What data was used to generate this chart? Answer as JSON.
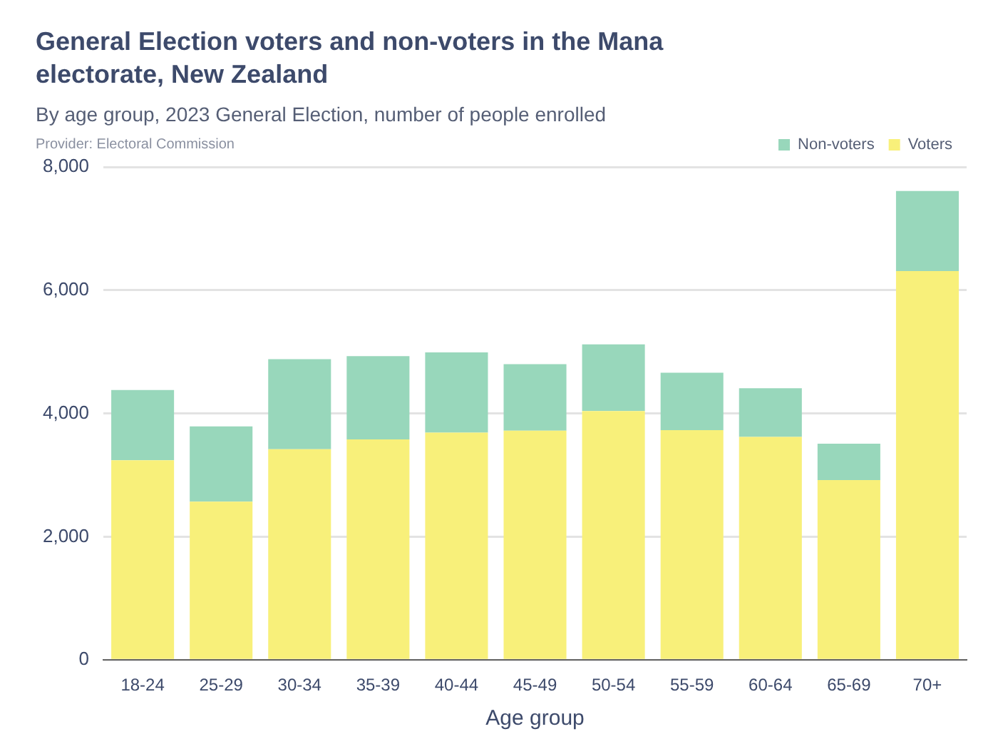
{
  "chart_data": {
    "type": "bar",
    "title": "General Election voters and non-voters in the Mana electorate, New Zealand",
    "subtitle": "By age group, 2023 General Election, number of people enrolled",
    "annotations": [
      "Provider: Electoral Commission"
    ],
    "xlabel": "Age group",
    "categories": [
      "18-24",
      "25-29",
      "30-34",
      "35-39",
      "40-44",
      "45-49",
      "50-54",
      "55-59",
      "60-64",
      "65-69",
      "70+"
    ],
    "stacked": true,
    "series": [
      {
        "name": "Voters",
        "color": "#f8f07a",
        "values": [
          3240,
          2570,
          3420,
          3580,
          3690,
          3720,
          4040,
          3730,
          3620,
          2920,
          6310
        ]
      },
      {
        "name": "Non-voters",
        "color": "#98d7bb",
        "values": [
          1140,
          1220,
          1460,
          1350,
          1300,
          1080,
          1080,
          930,
          790,
          590,
          1300
        ]
      }
    ],
    "ylim": [
      0,
      8000
    ],
    "yticks": [
      {
        "value": 0,
        "label": "0"
      },
      {
        "value": 2000,
        "label": "2,000"
      },
      {
        "value": 4000,
        "label": "4,000"
      },
      {
        "value": 6000,
        "label": "6,000"
      },
      {
        "value": 8000,
        "label": "8,000"
      }
    ],
    "grid": "y",
    "legend": "top right"
  }
}
